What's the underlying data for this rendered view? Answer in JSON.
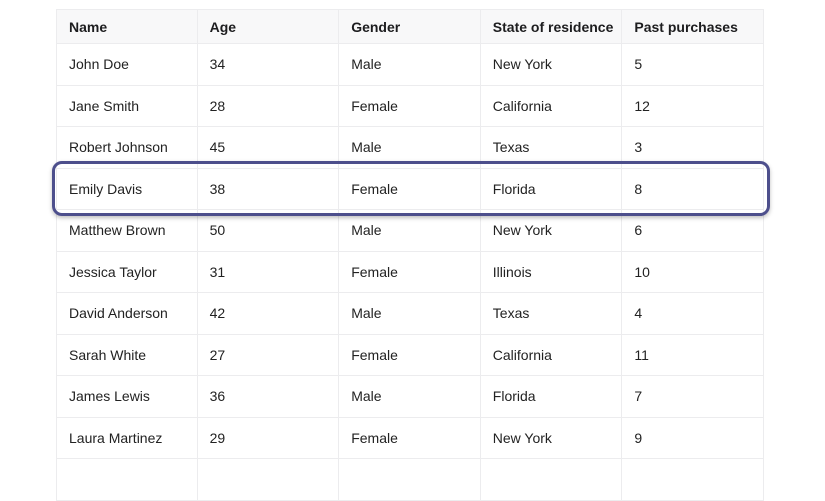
{
  "table": {
    "columns": [
      "Name",
      "Age",
      "Gender",
      "State of residence",
      "Past purchases"
    ],
    "rows": [
      [
        "John Doe",
        "34",
        "Male",
        "New York",
        "5"
      ],
      [
        "Jane Smith",
        "28",
        "Female",
        "California",
        "12"
      ],
      [
        "Robert Johnson",
        "45",
        "Male",
        "Texas",
        "3"
      ],
      [
        "Emily Davis",
        "38",
        "Female",
        "Florida",
        "8"
      ],
      [
        "Matthew Brown",
        "50",
        "Male",
        "New York",
        "6"
      ],
      [
        "Jessica Taylor",
        "31",
        "Female",
        "Illinois",
        "10"
      ],
      [
        "David Anderson",
        "42",
        "Male",
        "Texas",
        "4"
      ],
      [
        "Sarah White",
        "27",
        "Female",
        "California",
        "11"
      ],
      [
        "James Lewis",
        "36",
        "Male",
        "Florida",
        "7"
      ],
      [
        "Laura Martinez",
        "29",
        "Female",
        "New York",
        "9"
      ]
    ],
    "highlighted_row": 3,
    "highlight_color": "#4d4f8c"
  }
}
